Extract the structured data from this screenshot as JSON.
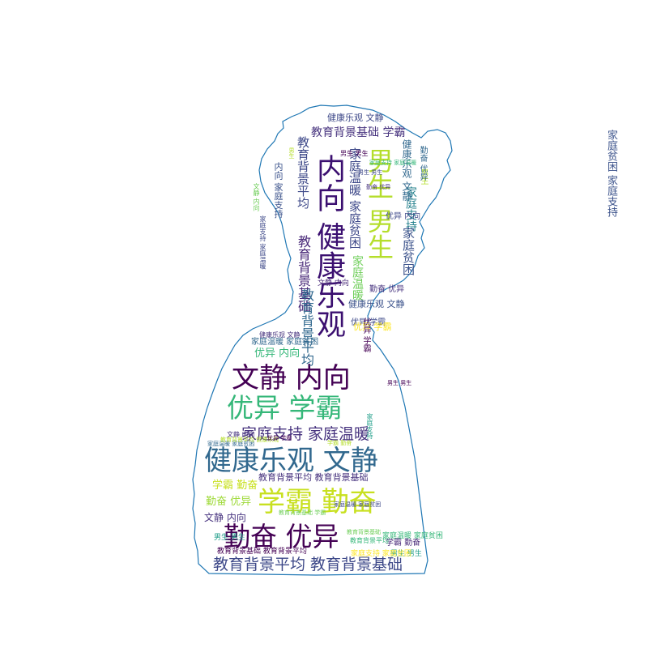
{
  "words": [
    {
      "text": "内向 健康乐观",
      "color": "#3b0f70"
    },
    {
      "text": "男生 男生",
      "color": "#b5de2b"
    },
    {
      "text": "文静 内向",
      "color": "#440154"
    },
    {
      "text": "优异 学霸",
      "color": "#35b779"
    },
    {
      "text": "健康乐观 文静",
      "color": "#31688e"
    },
    {
      "text": "学霸 勤奋",
      "color": "#c8e020"
    },
    {
      "text": "勤奋 优异",
      "color": "#440154"
    },
    {
      "text": "教育背景平均 教育背景基础",
      "color": "#3e4989"
    },
    {
      "text": "家庭支持 家庭温暖",
      "color": "#46327e"
    },
    {
      "text": "教育背景基础 学霸",
      "color": "#46327e"
    },
    {
      "text": "健康乐观 文静",
      "color": "#3e4989"
    },
    {
      "text": "家庭支持",
      "color": "#26828e"
    },
    {
      "text": "家庭贫困 家庭支持",
      "color": "#3b528b"
    },
    {
      "text": "家庭温暖 家庭贫困",
      "color": "#3e4989"
    },
    {
      "text": "教育背景基础",
      "color": "#482878"
    },
    {
      "text": "教育背景平均",
      "color": "#3e4989"
    },
    {
      "text": "内向 家庭支持",
      "color": "#3b528b"
    },
    {
      "text": "家庭温暖",
      "color": "#6ece58"
    },
    {
      "text": "教育背景平均",
      "color": "#31688e"
    },
    {
      "text": "健康乐观 文静",
      "color": "#3b528b"
    },
    {
      "text": "家庭贫困",
      "color": "#3b528b"
    },
    {
      "text": "优异 内向",
      "color": "#3e4989"
    },
    {
      "text": "健康乐观 文静",
      "color": "#31688e"
    },
    {
      "text": "文静 内向",
      "color": "#46327e"
    },
    {
      "text": "优异 学霸",
      "color": "#3e4989"
    },
    {
      "text": "优异 内向",
      "color": "#35b779"
    },
    {
      "text": "教育背景平均 教育背景基础",
      "color": "#46327e"
    },
    {
      "text": "学霸 勤奋",
      "color": "#c8e020"
    },
    {
      "text": "勤奋 优异",
      "color": "#9fda3a"
    },
    {
      "text": "文静 内向",
      "color": "#482878"
    },
    {
      "text": "男生 男生",
      "color": "#1f9e89"
    },
    {
      "text": "教育背景基础 教育背景平均",
      "color": "#440154"
    },
    {
      "text": "学霸 勤奋",
      "color": "#482878"
    },
    {
      "text": "男生 男生",
      "color": "#1f9e89"
    },
    {
      "text": "优异 学霸",
      "color": "#fde725"
    },
    {
      "text": "家庭温暖 家庭贫困",
      "color": "#31688e"
    },
    {
      "text": "勤奋 优异",
      "color": "#46327e"
    },
    {
      "text": "家庭温暖 家庭贫困",
      "color": "#35b779"
    },
    {
      "text": "优异 学霸",
      "color": "#440154"
    },
    {
      "text": "男生",
      "color": "#b5de2b"
    },
    {
      "text": "家庭支持 家庭贫困",
      "color": "#fde725"
    },
    {
      "text": "教育背景基础 学霸",
      "color": "#6ece58"
    },
    {
      "text": "勤奋 优异",
      "color": "#31688e"
    },
    {
      "text": "男生 男生",
      "color": "#440154"
    },
    {
      "text": "文静 内向",
      "color": "#46327e"
    },
    {
      "text": "家庭温暖 家庭贫困",
      "color": "#31688e"
    },
    {
      "text": "教育背景平均",
      "color": "#35b779"
    },
    {
      "text": "家庭支持",
      "color": "#1f9e89"
    },
    {
      "text": "男生 男生",
      "color": "#3e4989"
    },
    {
      "text": "勤奋 优异",
      "color": "#46327e"
    },
    {
      "text": "家庭支持 家庭温暖",
      "color": "#35b779"
    },
    {
      "text": "教育背景平均 健康乐观",
      "color": "#b5de2b"
    },
    {
      "text": "文静 内向",
      "color": "#6ece58"
    },
    {
      "text": "学霸 勤奋",
      "color": "#b5de2b"
    },
    {
      "text": "家庭支持 家庭温暖",
      "color": "#3e4989"
    },
    {
      "text": "男生 男生",
      "color": "#440154"
    },
    {
      "text": "健康乐观 文静",
      "color": "#46327e"
    },
    {
      "text": "教育背景基础",
      "color": "#6ece58"
    },
    {
      "text": "男生",
      "color": "#b5de2b"
    },
    {
      "text": "家庭温暖 家庭贫困",
      "color": "#3e4989"
    },
    {
      "text": "优异 学霸",
      "color": "#440154"
    }
  ],
  "outline_color": "#1f77b4"
}
